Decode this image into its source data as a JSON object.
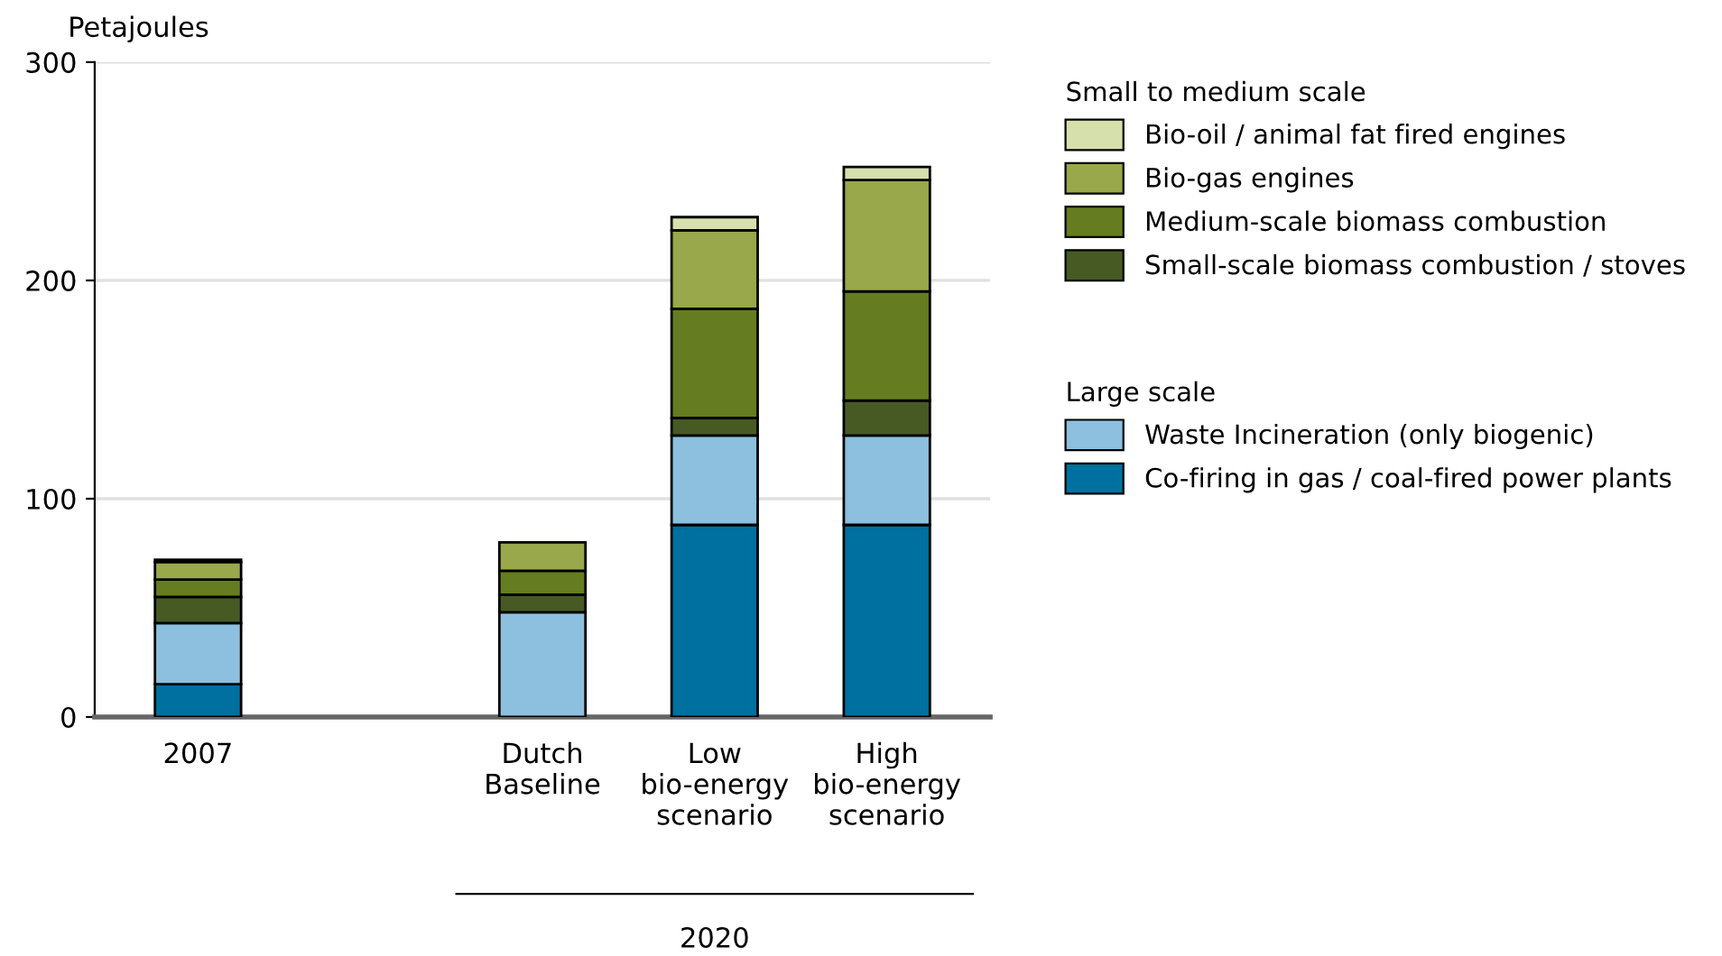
{
  "chart_data": {
    "type": "bar",
    "stacked": true,
    "ylabel": "Petajoules",
    "categories": [
      "2007",
      null,
      "Dutch\nBaseline",
      "Low\nbio-energy\nscenario",
      "High\nbio-energy\nscenario"
    ],
    "legend_title": [
      "Small to medium scale",
      "Large scale"
    ],
    "series": [
      {
        "name": "Co-firing in gas / coal-fired power plants",
        "color": "#0070a0",
        "values": [
          15,
          null,
          null,
          88,
          88
        ]
      },
      {
        "name": "Waste Incineration (only biogenic)",
        "color": "#8cc0de",
        "values": [
          28,
          null,
          48,
          41,
          41
        ]
      },
      {
        "name": "Small-scale biomass combustion / stoves",
        "color": "#475a24",
        "values": [
          12,
          null,
          8,
          8,
          16
        ]
      },
      {
        "name": "Medium-scale biomass combustion",
        "color": "#657d20",
        "values": [
          8,
          null,
          11,
          50,
          50
        ]
      },
      {
        "name": "Bio-gas engines",
        "color": "#98a84a",
        "values": [
          8,
          null,
          13,
          36,
          51
        ]
      },
      {
        "name": "Bio-oil / animal fat fired engines",
        "color": "#d5e0ac",
        "values": [
          1,
          null,
          null,
          6,
          6
        ]
      }
    ],
    "ylim": [
      0,
      300
    ],
    "yticks": [
      0,
      100,
      200,
      300
    ],
    "grid": "y",
    "legend": "top right",
    "annotations": [
      "2020"
    ]
  }
}
